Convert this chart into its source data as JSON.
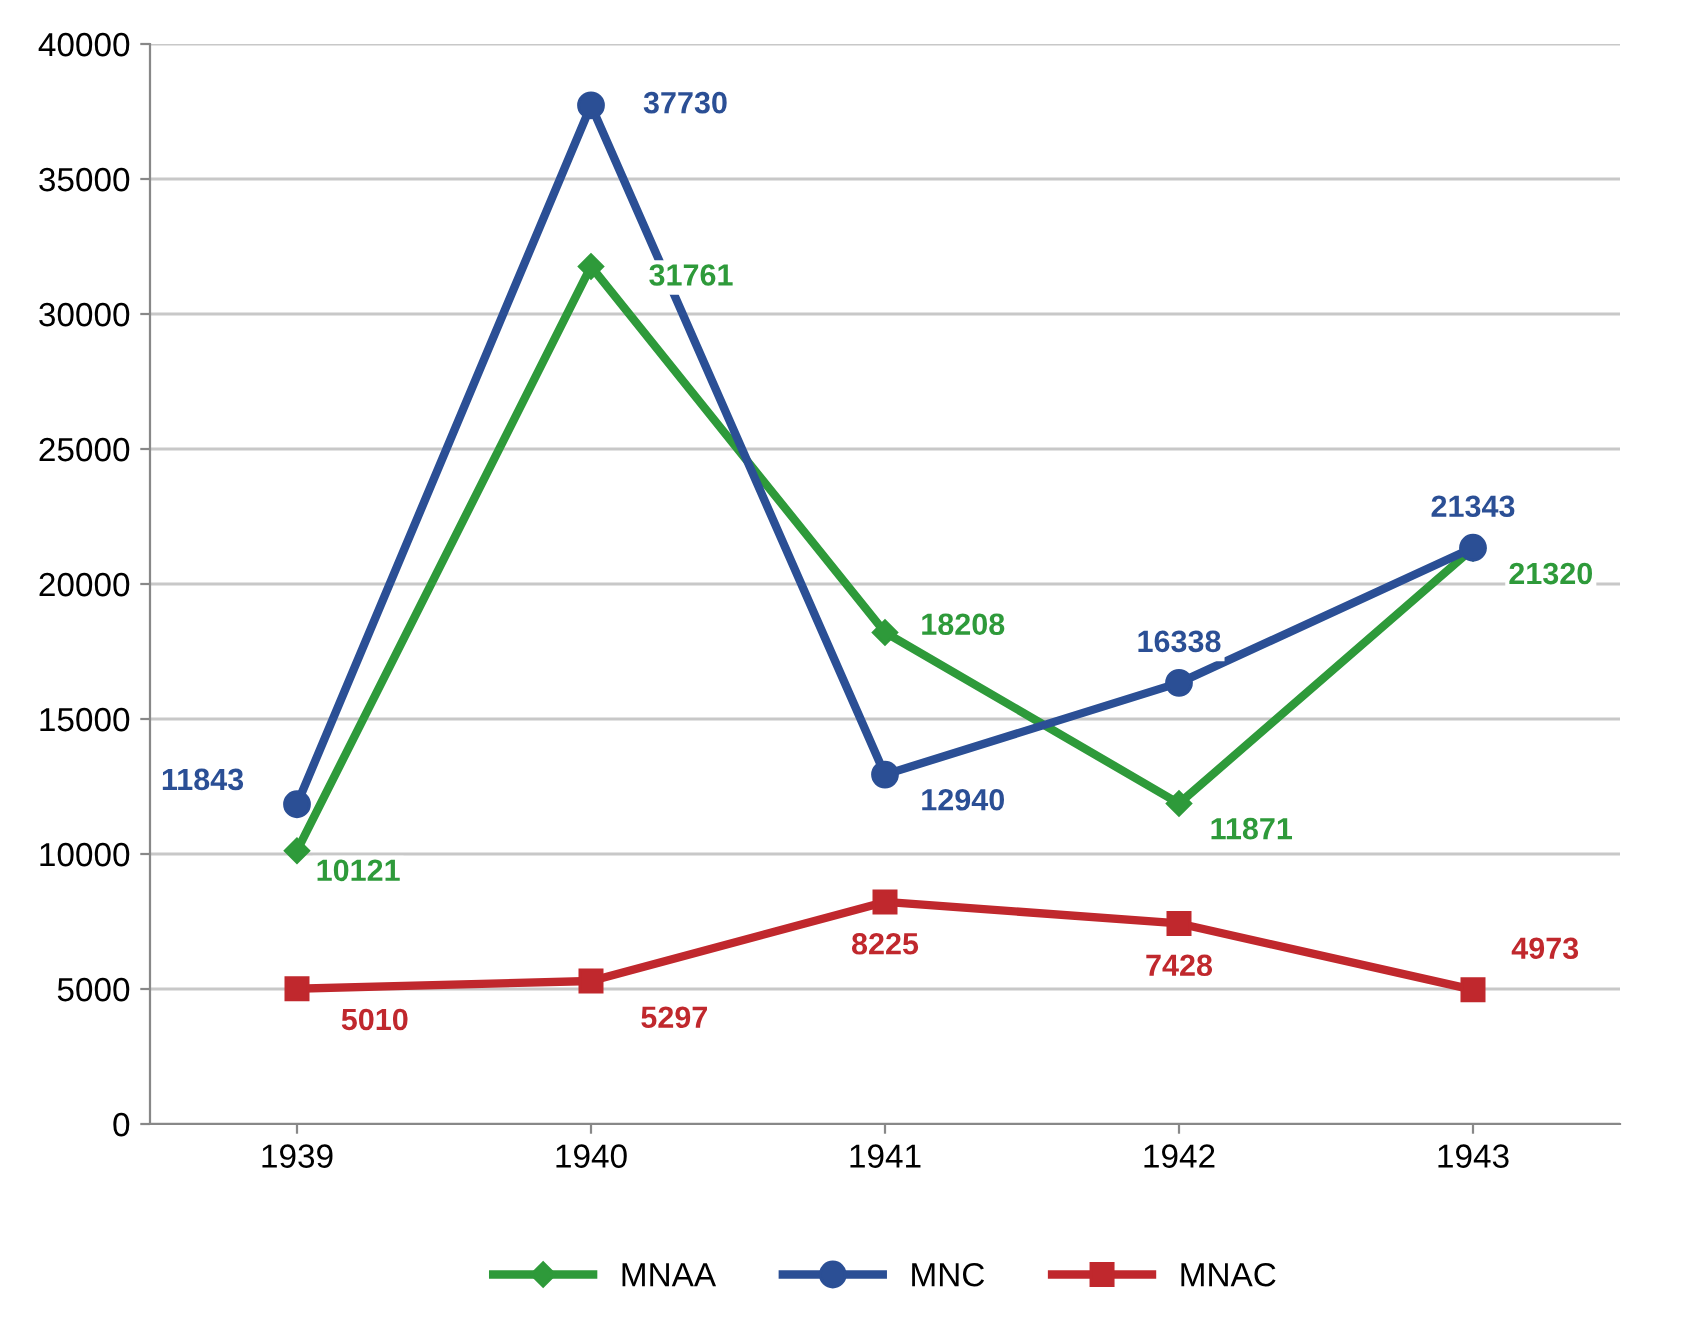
{
  "chart_data": {
    "type": "line",
    "categories": [
      "1939",
      "1940",
      "1941",
      "1942",
      "1943"
    ],
    "series": [
      {
        "name": "MNAA",
        "color": "#2e9a3a",
        "marker": "diamond",
        "values": [
          10121,
          31761,
          18208,
          11871,
          21320
        ]
      },
      {
        "name": "MNC",
        "color": "#2b4f95",
        "marker": "circle",
        "values": [
          11843,
          37730,
          12940,
          16338,
          21343
        ]
      },
      {
        "name": "MNAC",
        "color": "#c0282d",
        "marker": "square",
        "values": [
          5010,
          5297,
          8225,
          7428,
          4973
        ]
      }
    ],
    "ylim": [
      0,
      40000
    ],
    "yticks": [
      0,
      5000,
      10000,
      15000,
      20000,
      25000,
      30000,
      35000,
      40000
    ],
    "grid": "y",
    "legend": "bottom",
    "data_labels": true
  }
}
